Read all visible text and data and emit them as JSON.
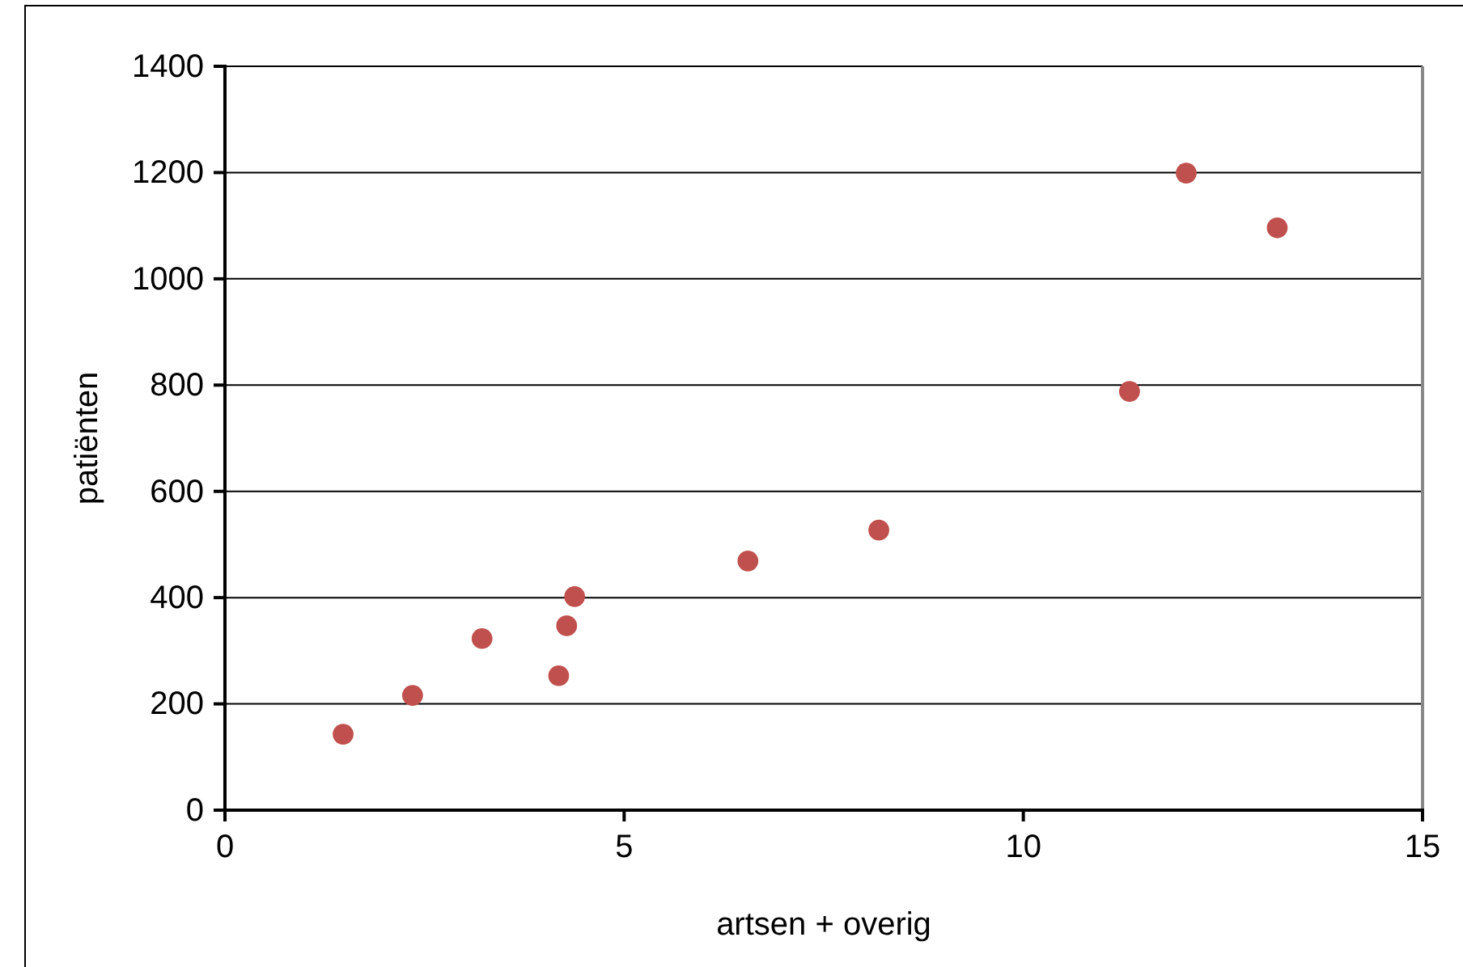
{
  "chart_data": {
    "type": "scatter",
    "xlabel": "artsen + overig",
    "ylabel": "patiënten",
    "x": [
      1.48,
      2.35,
      3.22,
      4.18,
      4.28,
      4.38,
      6.55,
      8.19,
      11.33,
      12.04,
      13.18
    ],
    "series": [
      {
        "color": "#c0504d",
        "values": [
          143,
          216,
          323,
          253,
          347,
          402,
          469,
          527,
          788,
          1199,
          1096
        ]
      }
    ],
    "xlim": [
      0,
      15
    ],
    "xticks": [
      0,
      5,
      10,
      15
    ],
    "ylim": [
      0,
      1400
    ],
    "yticks": [
      0,
      200,
      400,
      600,
      800,
      1000,
      1200,
      1400
    ],
    "grid": "y",
    "marker": "circle"
  }
}
